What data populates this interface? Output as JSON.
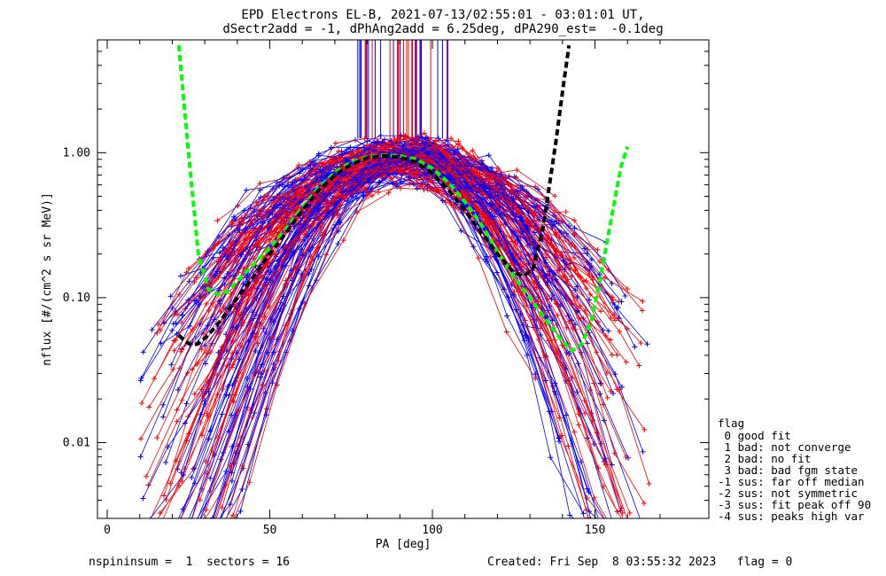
{
  "chart_data": {
    "type": "line",
    "title_line1": "EPD Electrons EL-B, 2021-07-13/02:55:01 - 03:01:01 UT,",
    "title_line2": "dSectr2add = -1, dPhAng2add = 6.25deg, dPA290_est=  -0.1deg",
    "xlabel": "PA [deg]",
    "ylabel": "nflux [#/(cm^2 s sr MeV)]",
    "xlim": [
      -3,
      185
    ],
    "ylim": [
      0.003,
      6.0
    ],
    "yscale": "log",
    "xticks": [
      0,
      50,
      100,
      150
    ],
    "xtick_labels": [
      "0",
      "50",
      "100",
      "150"
    ],
    "yticks": [
      0.01,
      0.1,
      1.0
    ],
    "ytick_labels": [
      "0.01",
      "0.10",
      "1.00"
    ],
    "grid": false,
    "colors": {
      "red": "#ff0000",
      "blue": "#0000ff",
      "green": "#00ff00",
      "black": "#000000"
    },
    "fit_curves": [
      {
        "color": "#00ff00",
        "x": [
          22,
          25,
          28,
          31,
          34,
          37,
          40,
          45,
          50,
          55,
          60,
          65,
          70,
          75,
          80,
          85,
          90,
          95,
          100,
          105,
          110,
          115,
          120,
          125,
          130,
          135,
          140,
          143,
          146,
          149,
          152,
          155,
          158,
          160
        ],
        "y": [
          5.5,
          1.0,
          0.2,
          0.115,
          0.105,
          0.11,
          0.13,
          0.17,
          0.22,
          0.3,
          0.42,
          0.57,
          0.73,
          0.86,
          0.93,
          0.96,
          0.95,
          0.9,
          0.78,
          0.62,
          0.46,
          0.32,
          0.21,
          0.14,
          0.1,
          0.07,
          0.05,
          0.043,
          0.048,
          0.07,
          0.15,
          0.35,
          0.8,
          1.1
        ]
      },
      {
        "color": "#000000",
        "x": [
          22,
          24,
          26,
          28,
          31,
          35,
          40,
          45,
          50,
          55,
          60,
          65,
          70,
          75,
          80,
          85,
          90,
          95,
          100,
          105,
          110,
          115,
          120,
          125,
          128,
          131,
          134,
          136,
          138,
          140,
          142
        ],
        "y": [
          0.055,
          0.05,
          0.047,
          0.048,
          0.055,
          0.07,
          0.1,
          0.14,
          0.2,
          0.28,
          0.4,
          0.55,
          0.7,
          0.83,
          0.92,
          0.95,
          0.93,
          0.86,
          0.72,
          0.55,
          0.4,
          0.28,
          0.2,
          0.15,
          0.14,
          0.16,
          0.3,
          0.6,
          1.2,
          2.6,
          5.5
        ]
      }
    ],
    "legend": {
      "heading": "flag",
      "entries": [
        " 0 good fit",
        " 1 bad: not converge",
        " 2 bad: no fit",
        " 3 bad: bad fgm state",
        "-1 sus: far off median",
        "-2 sus: not symmetric",
        "-3 sus: fit peak off 90",
        "-4 sus: peaks high var"
      ]
    }
  },
  "footer": {
    "left": "nspininsum =  1  sectors = 16",
    "right": "Created: Fri Sep  8 03:55:32 2023   flag = 0"
  }
}
